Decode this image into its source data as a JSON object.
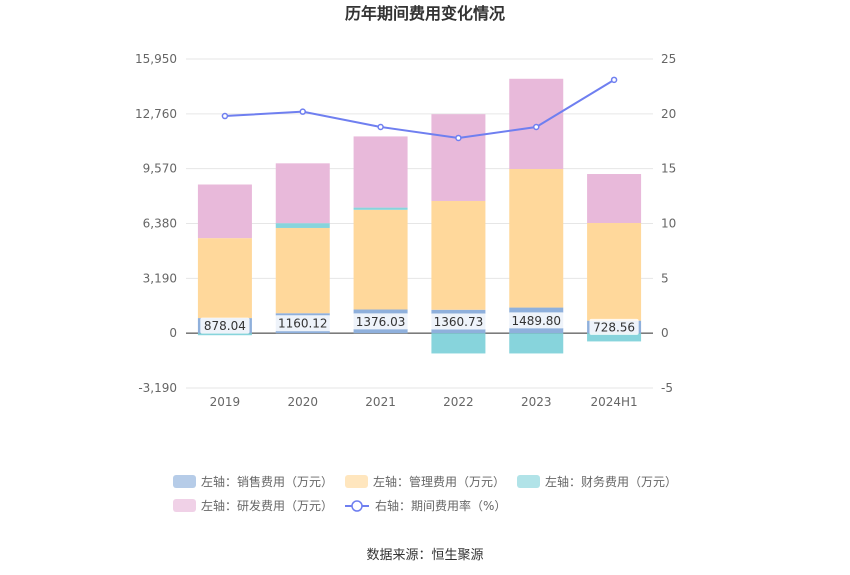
{
  "chart_data": {
    "type": "bar",
    "title": "历年期间费用变化情况",
    "categories": [
      "2019",
      "2020",
      "2021",
      "2022",
      "2023",
      "2024H1"
    ],
    "left_axis": {
      "ticks": [
        "15,950",
        "12,760",
        "9,570",
        "6,380",
        "3,190",
        "0",
        "-3,190"
      ],
      "range": [
        -3190,
        15950
      ]
    },
    "right_axis": {
      "ticks": [
        "25",
        "20",
        "15",
        "10",
        "5",
        "0",
        "-5"
      ],
      "range": [
        -5,
        25
      ]
    },
    "series": [
      {
        "name": "左轴：销售费用（万元）",
        "color": "#8fb0dc",
        "values": [
          878.04,
          1160.12,
          1376.03,
          1360.73,
          1489.8,
          728.56
        ],
        "labels": [
          "878.04",
          "1160.12",
          "1376.03",
          "1360.73",
          "1489.80",
          "728.56"
        ]
      },
      {
        "name": "左轴：管理费用（万元）",
        "color": "#ffd89b",
        "values": [
          4650,
          4960,
          5800,
          6330,
          8060,
          5680
        ]
      },
      {
        "name": "左轴：财务费用（万元）",
        "color": "#87d4dc",
        "values": [
          -120,
          280,
          130,
          -1180,
          -1180,
          -480
        ]
      },
      {
        "name": "左轴：研发费用（万元）",
        "color": "#e8b9da",
        "values": [
          3120,
          3480,
          4140,
          5050,
          5250,
          2850
        ]
      }
    ],
    "line_series": {
      "name": "右轴：期间费用率（%）",
      "color": "#6f7ff0",
      "values": [
        19.8,
        20.2,
        18.8,
        17.8,
        18.8,
        23.1
      ]
    },
    "legend_placement": "bottom",
    "grid": true,
    "source": "数据来源：恒生聚源"
  }
}
